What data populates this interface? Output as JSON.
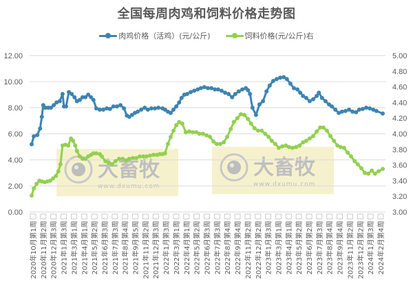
{
  "chart_data": {
    "type": "line",
    "title": "全国每周肉鸡和饲料价格走势图",
    "xlabel": "",
    "ylabel": "",
    "y_left": {
      "ylim": [
        0,
        12
      ],
      "ticks": [
        "0.00",
        "2.00",
        "4.00",
        "6.00",
        "8.00",
        "10.00",
        "12.00"
      ]
    },
    "y_right": {
      "ylim": [
        3,
        5
      ],
      "ticks": [
        "3.00",
        "3.20",
        "3.40",
        "3.60",
        "3.80",
        "4.00",
        "4.20",
        "4.40",
        "4.60",
        "4.80",
        "5.00"
      ]
    },
    "grid": true,
    "legend_position": "top",
    "categories": [
      "2020年10月第1周",
      "2020年11月第2周",
      "2020年12月第3周",
      "2021年1月第3周",
      "2021年3月第1周",
      "2021年4月第1周",
      "2021年5月第2周",
      "2021年6月第3周",
      "2021年7月第3周",
      "2021年8月第4周",
      "2021年9月第5周",
      "2021年11月第2周",
      "2021年12月第3周",
      "2022年1月第3周",
      "2022年3月第1周",
      "2022年4月第1周",
      "2022年5月第2周",
      "2022年6月第3周",
      "2022年7月第3周",
      "2022年8月第4周",
      "2022年9月第4周",
      "2022年11月第2周",
      "2022年12月第2周",
      "2023年1月第3周",
      "2023年3月第1周",
      "2023年4月第1周",
      "2023年5月第2周",
      "2023年6月第2周",
      "2023年7月第3周",
      "2023年8月第4周",
      "2023年9月第4周",
      "2023年11月第2周",
      "2023年12月第2周",
      "2024年1月第3周",
      "2024年2月第4周"
    ],
    "series": [
      {
        "name": "肉鸡价格（活鸡）(元/公斤)",
        "axis": "left",
        "color": "#3d84b0",
        "x_pos": [
          0,
          0.006,
          0.016,
          0.024,
          0.029,
          0.033,
          0.039,
          0.047,
          0.055,
          0.063,
          0.071,
          0.08,
          0.088,
          0.092,
          0.098,
          0.106,
          0.114,
          0.122,
          0.129,
          0.137,
          0.145,
          0.153,
          0.161,
          0.169,
          0.176,
          0.184,
          0.194,
          0.204,
          0.214,
          0.223,
          0.233,
          0.243,
          0.253,
          0.263,
          0.271,
          0.278,
          0.286,
          0.294,
          0.302,
          0.312,
          0.322,
          0.331,
          0.341,
          0.351,
          0.361,
          0.373,
          0.38,
          0.388,
          0.396,
          0.404,
          0.412,
          0.42,
          0.427,
          0.435,
          0.443,
          0.453,
          0.463,
          0.473,
          0.482,
          0.492,
          0.502,
          0.512,
          0.522,
          0.531,
          0.541,
          0.551,
          0.561,
          0.571,
          0.58,
          0.59,
          0.6,
          0.61,
          0.616,
          0.622,
          0.629,
          0.639,
          0.649,
          0.659,
          0.669,
          0.678,
          0.688,
          0.698,
          0.708,
          0.718,
          0.727,
          0.737,
          0.747,
          0.757,
          0.765,
          0.773,
          0.782,
          0.792,
          0.802,
          0.812,
          0.818,
          0.827,
          0.837,
          0.847,
          0.855,
          0.865,
          0.875,
          0.884,
          0.894,
          0.904,
          0.914,
          0.924,
          0.933,
          0.943,
          0.953,
          0.963,
          0.973,
          0.982,
          1.0
        ],
        "values": [
          5.2,
          5.8,
          5.9,
          6.4,
          7.3,
          8.2,
          8.0,
          8.0,
          8.0,
          8.2,
          8.4,
          8.5,
          9.05,
          8.1,
          8.1,
          9.2,
          9.05,
          8.8,
          8.5,
          8.6,
          8.8,
          8.8,
          9.0,
          8.8,
          8.6,
          7.95,
          7.85,
          7.85,
          7.95,
          7.9,
          8.1,
          8.1,
          8.2,
          7.95,
          7.4,
          7.3,
          7.45,
          7.6,
          7.7,
          7.85,
          8.0,
          7.85,
          7.95,
          7.95,
          8.0,
          7.95,
          7.85,
          7.7,
          7.6,
          7.85,
          8.1,
          8.4,
          8.75,
          9.0,
          9.05,
          9.2,
          9.3,
          9.4,
          9.5,
          9.58,
          9.5,
          9.5,
          9.4,
          9.4,
          9.3,
          9.15,
          9.05,
          8.8,
          9.05,
          9.25,
          9.4,
          9.5,
          9.35,
          9.05,
          8.0,
          7.45,
          8.25,
          8.5,
          9.25,
          9.7,
          10.05,
          10.2,
          10.3,
          10.35,
          10.2,
          9.85,
          9.5,
          9.4,
          9.15,
          8.9,
          8.75,
          8.5,
          8.65,
          8.9,
          9.15,
          8.75,
          8.5,
          8.25,
          8.1,
          7.85,
          7.6,
          7.7,
          7.75,
          7.85,
          7.7,
          7.65,
          7.85,
          7.9,
          8.0,
          7.95,
          7.85,
          7.75,
          7.55
        ]
      },
      {
        "name": "饲料价格(元/公斤)右",
        "axis": "right",
        "color": "#92d050",
        "x_pos": [
          0,
          0.006,
          0.014,
          0.022,
          0.029,
          0.037,
          0.045,
          0.053,
          0.061,
          0.069,
          0.076,
          0.082,
          0.088,
          0.096,
          0.104,
          0.112,
          0.118,
          0.124,
          0.129,
          0.137,
          0.145,
          0.153,
          0.161,
          0.169,
          0.176,
          0.184,
          0.194,
          0.2,
          0.21,
          0.22,
          0.229,
          0.239,
          0.249,
          0.259,
          0.269,
          0.278,
          0.288,
          0.298,
          0.308,
          0.318,
          0.327,
          0.337,
          0.347,
          0.357,
          0.365,
          0.373,
          0.38,
          0.388,
          0.396,
          0.404,
          0.412,
          0.42,
          0.429,
          0.439,
          0.449,
          0.459,
          0.469,
          0.478,
          0.488,
          0.498,
          0.508,
          0.518,
          0.527,
          0.537,
          0.547,
          0.557,
          0.567,
          0.576,
          0.586,
          0.596,
          0.606,
          0.616,
          0.625,
          0.635,
          0.645,
          0.655,
          0.665,
          0.675,
          0.684,
          0.694,
          0.704,
          0.714,
          0.724,
          0.733,
          0.743,
          0.753,
          0.763,
          0.773,
          0.782,
          0.792,
          0.802,
          0.812,
          0.822,
          0.831,
          0.841,
          0.851,
          0.861,
          0.871,
          0.88,
          0.89,
          0.9,
          0.91,
          0.92,
          0.929,
          0.939,
          0.949,
          0.959,
          0.969,
          0.978,
          0.988,
          1.0
        ],
        "values": [
          3.21,
          3.3,
          3.36,
          3.4,
          3.39,
          3.38,
          3.39,
          3.4,
          3.43,
          3.46,
          3.52,
          3.61,
          3.85,
          3.86,
          3.85,
          3.94,
          3.91,
          3.85,
          3.78,
          3.71,
          3.68,
          3.68,
          3.71,
          3.73,
          3.75,
          3.75,
          3.74,
          3.71,
          3.65,
          3.63,
          3.61,
          3.65,
          3.68,
          3.68,
          3.66,
          3.68,
          3.69,
          3.69,
          3.71,
          3.71,
          3.71,
          3.72,
          3.73,
          3.73,
          3.74,
          3.74,
          3.75,
          3.87,
          3.96,
          4.04,
          4.11,
          4.15,
          4.13,
          4.02,
          4.03,
          4.02,
          4.02,
          4.0,
          4.0,
          3.98,
          3.96,
          3.9,
          3.87,
          3.87,
          3.89,
          3.96,
          4.06,
          4.15,
          4.2,
          4.25,
          4.24,
          4.19,
          4.13,
          4.07,
          4.04,
          4.04,
          4.0,
          3.96,
          3.91,
          3.87,
          3.82,
          3.84,
          3.85,
          3.83,
          3.82,
          3.83,
          3.85,
          3.89,
          3.91,
          3.94,
          3.97,
          4.03,
          4.08,
          4.08,
          4.04,
          3.97,
          3.91,
          3.85,
          3.83,
          3.82,
          3.76,
          3.71,
          3.65,
          3.61,
          3.56,
          3.5,
          3.49,
          3.53,
          3.49,
          3.52,
          3.55
        ]
      }
    ]
  },
  "legend": {
    "items": [
      {
        "label": "肉鸡价格（活鸡）(元/公斤)",
        "color": "#3d84b0"
      },
      {
        "label": "饲料价格(元/公斤)右",
        "color": "#92d050"
      }
    ]
  },
  "watermark": {
    "brand": "大畜牧",
    "url": "www.dxumu.com"
  }
}
